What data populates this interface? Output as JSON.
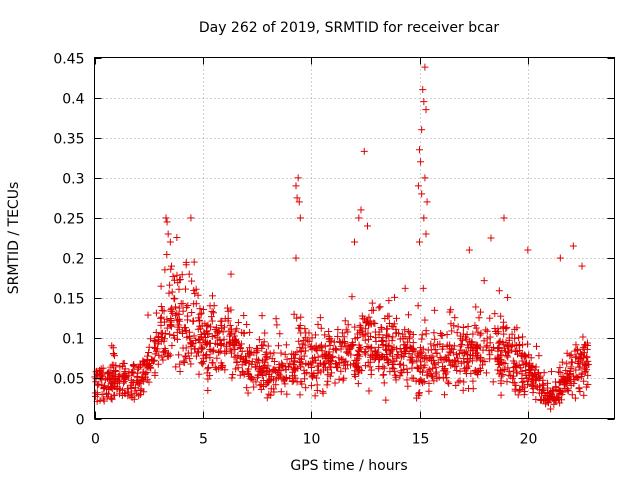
{
  "chart_data": {
    "type": "scatter",
    "title": "Day 262 of 2019, SRMTID for receiver bcar",
    "xlabel": "GPS time / hours",
    "ylabel": "SRMTID / TECUs",
    "xlim": [
      0,
      24
    ],
    "ylim": [
      0,
      0.45
    ],
    "xticks": [
      0,
      5,
      10,
      15,
      20
    ],
    "xtick_labels": [
      "0",
      "5",
      "10",
      "15",
      "20"
    ],
    "yticks": [
      0,
      0.05,
      0.1,
      0.15,
      0.2,
      0.25,
      0.3,
      0.35,
      0.4,
      0.45
    ],
    "ytick_labels": [
      "0",
      "0.05",
      "0.1",
      "0.15",
      "0.2",
      "0.25",
      "0.3",
      "0.35",
      "0.4",
      "0.45"
    ],
    "grid": true,
    "marker": "plus",
    "color": "#e00000",
    "trend": {
      "x": [
        0,
        1,
        2,
        2.6,
        3.2,
        3.6,
        4.2,
        5,
        6,
        7,
        8,
        9,
        9.6,
        10.2,
        11,
        12,
        12.6,
        13.2,
        14,
        15,
        15.5,
        16,
        17,
        18,
        19,
        19.6,
        20.2,
        21,
        21.6,
        22.3,
        22.8
      ],
      "y": [
        0.045,
        0.05,
        0.045,
        0.07,
        0.11,
        0.13,
        0.115,
        0.095,
        0.095,
        0.075,
        0.06,
        0.06,
        0.08,
        0.07,
        0.08,
        0.085,
        0.1,
        0.085,
        0.085,
        0.07,
        0.075,
        0.07,
        0.08,
        0.085,
        0.08,
        0.07,
        0.05,
        0.025,
        0.04,
        0.07,
        0.06
      ]
    },
    "outliers": [
      {
        "x": 3.3,
        "y": 0.25
      },
      {
        "x": 3.35,
        "y": 0.245
      },
      {
        "x": 3.4,
        "y": 0.23
      },
      {
        "x": 3.5,
        "y": 0.22
      },
      {
        "x": 4.45,
        "y": 0.25
      },
      {
        "x": 4.6,
        "y": 0.195
      },
      {
        "x": 6.3,
        "y": 0.18
      },
      {
        "x": 9.3,
        "y": 0.29
      },
      {
        "x": 9.35,
        "y": 0.275
      },
      {
        "x": 9.4,
        "y": 0.3
      },
      {
        "x": 9.45,
        "y": 0.27
      },
      {
        "x": 9.5,
        "y": 0.25
      },
      {
        "x": 9.3,
        "y": 0.2
      },
      {
        "x": 12.45,
        "y": 0.333
      },
      {
        "x": 12.3,
        "y": 0.26
      },
      {
        "x": 12.2,
        "y": 0.25
      },
      {
        "x": 12.0,
        "y": 0.22
      },
      {
        "x": 12.6,
        "y": 0.24
      },
      {
        "x": 15.25,
        "y": 0.438
      },
      {
        "x": 15.15,
        "y": 0.41
      },
      {
        "x": 15.2,
        "y": 0.395
      },
      {
        "x": 15.3,
        "y": 0.385
      },
      {
        "x": 15.1,
        "y": 0.36
      },
      {
        "x": 15.0,
        "y": 0.335
      },
      {
        "x": 15.05,
        "y": 0.32
      },
      {
        "x": 15.25,
        "y": 0.3
      },
      {
        "x": 14.95,
        "y": 0.29
      },
      {
        "x": 15.1,
        "y": 0.28
      },
      {
        "x": 15.35,
        "y": 0.27
      },
      {
        "x": 15.2,
        "y": 0.25
      },
      {
        "x": 15.3,
        "y": 0.23
      },
      {
        "x": 15.0,
        "y": 0.22
      },
      {
        "x": 17.3,
        "y": 0.21
      },
      {
        "x": 18.3,
        "y": 0.225
      },
      {
        "x": 18.9,
        "y": 0.25
      },
      {
        "x": 20.0,
        "y": 0.21
      },
      {
        "x": 21.5,
        "y": 0.2
      },
      {
        "x": 22.1,
        "y": 0.215
      },
      {
        "x": 22.5,
        "y": 0.19
      }
    ],
    "n_points": 1700,
    "seed": 262
  }
}
